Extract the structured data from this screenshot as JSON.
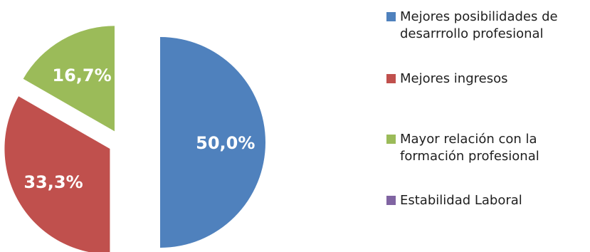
{
  "chart_data": {
    "type": "pie",
    "labels": [
      "Mejores posibilidades de desarrrollo profesional",
      "Mejores ingresos",
      "Mayor relación con la formación profesional",
      "Estabilidad Laboral"
    ],
    "values": [
      50.0,
      33.3,
      16.7,
      0.0
    ],
    "data_labels": [
      "50,0%",
      "33,3%",
      "16,7%",
      ""
    ],
    "colors": [
      "#4F81BD",
      "#C0504D",
      "#9BBB59",
      "#8064A2"
    ],
    "exploded": true,
    "legend_position": "right"
  }
}
